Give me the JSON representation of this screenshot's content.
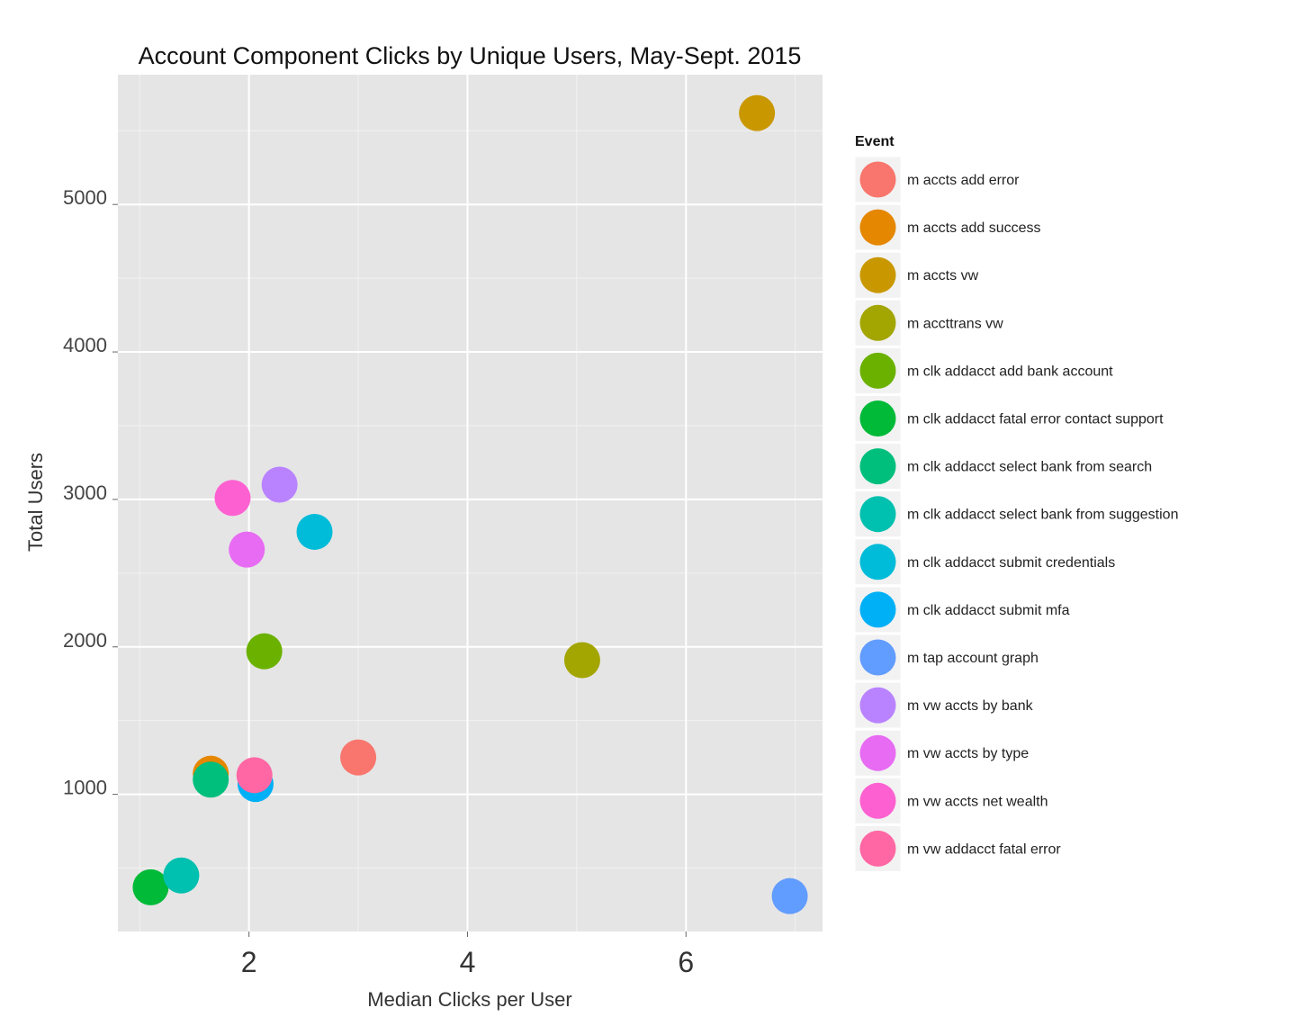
{
  "chart_data": {
    "type": "scatter",
    "title": "Account Component Clicks by Unique Users, May-Sept. 2015",
    "xlabel": "Median Clicks per User",
    "ylabel": "Total Users",
    "xlim": [
      0.8,
      7.25
    ],
    "ylim": [
      70,
      5880
    ],
    "x_ticks": [
      2,
      4,
      6
    ],
    "x_tick_labels": [
      "2",
      "4",
      "6"
    ],
    "y_ticks": [
      1000,
      2000,
      3000,
      4000,
      5000
    ],
    "y_tick_labels": [
      "1000",
      "2000",
      "3000",
      "4000",
      "5000"
    ],
    "legend_title": "Event",
    "legend_position": "right",
    "grid": true,
    "series": [
      {
        "name": "m accts add error",
        "color": "#F8766D",
        "points": [
          [
            3.0,
            1250
          ]
        ]
      },
      {
        "name": "m accts add success",
        "color": "#E58700",
        "points": [
          [
            1.65,
            1140
          ]
        ]
      },
      {
        "name": "m accts vw",
        "color": "#C99800",
        "points": [
          [
            6.65,
            5620
          ]
        ]
      },
      {
        "name": "m accttrans vw",
        "color": "#A3A500",
        "points": [
          [
            5.05,
            1910
          ]
        ]
      },
      {
        "name": "m clk addacct add bank account",
        "color": "#6BB100",
        "points": [
          [
            2.14,
            1970
          ]
        ]
      },
      {
        "name": "m clk addacct fatal error contact support",
        "color": "#00BA38",
        "points": [
          [
            1.1,
            370
          ]
        ]
      },
      {
        "name": "m clk addacct select bank from search",
        "color": "#00BF7D",
        "points": [
          [
            1.65,
            1100
          ]
        ]
      },
      {
        "name": "m clk addacct select bank from suggestion",
        "color": "#00C0AF",
        "points": [
          [
            1.38,
            450
          ]
        ]
      },
      {
        "name": "m clk addacct submit credentials",
        "color": "#00BCD8",
        "points": [
          [
            2.6,
            2780
          ]
        ]
      },
      {
        "name": "m clk addacct submit mfa",
        "color": "#00B0F6",
        "points": [
          [
            2.06,
            1070
          ]
        ]
      },
      {
        "name": "m tap account graph",
        "color": "#619CFF",
        "points": [
          [
            6.95,
            310
          ]
        ]
      },
      {
        "name": "m vw accts by bank",
        "color": "#B983FF",
        "points": [
          [
            2.28,
            3100
          ]
        ]
      },
      {
        "name": "m vw accts by type",
        "color": "#E76BF3",
        "points": [
          [
            1.98,
            2660
          ]
        ]
      },
      {
        "name": "m vw accts net wealth",
        "color": "#FD61D1",
        "points": [
          [
            1.85,
            3010
          ]
        ]
      },
      {
        "name": "m vw addacct fatal error",
        "color": "#FF67A4",
        "points": [
          [
            2.05,
            1130
          ]
        ]
      }
    ]
  }
}
